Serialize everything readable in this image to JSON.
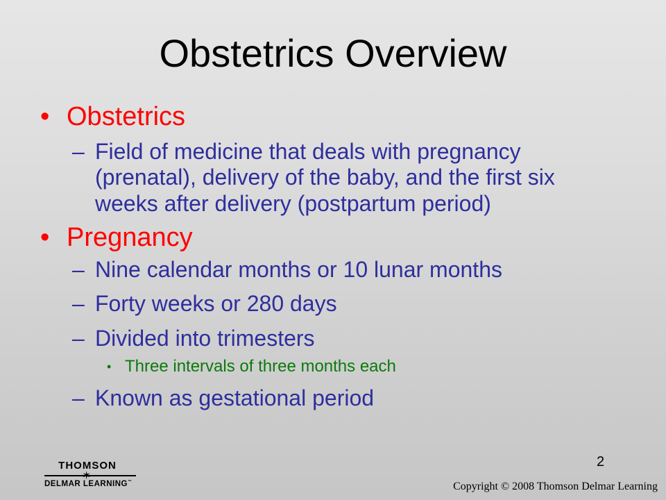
{
  "slide": {
    "title": "Obstetrics Overview",
    "page_number": "2",
    "bullets": [
      {
        "text": "Obstetrics",
        "sub": [
          {
            "lines": [
              "Field of medicine that deals with pregnancy",
              "(prenatal), delivery of the baby, and the first six",
              "weeks after delivery (postpartum period)"
            ]
          }
        ]
      },
      {
        "text": "Pregnancy",
        "sub": [
          {
            "text": "Nine calendar months or 10 lunar months"
          },
          {
            "text": "Forty weeks or 280 days"
          },
          {
            "text": "Divided into trimesters",
            "sub": [
              {
                "text": "Three intervals of three months each"
              }
            ]
          },
          {
            "text": "Known as gestational period"
          }
        ]
      }
    ],
    "bullet_glyph": "•",
    "dash_glyph": "–"
  },
  "footer": {
    "logo_top": "THOMSON",
    "logo_bottom": "DELMAR LEARNING",
    "logo_tm": "™",
    "copyright": "Copyright © 2008 Thomson Delmar Learning"
  },
  "colors": {
    "title": "#000000",
    "level1": "#ff0000",
    "level2": "#2e2e9e",
    "level3": "#0b7a0b"
  }
}
